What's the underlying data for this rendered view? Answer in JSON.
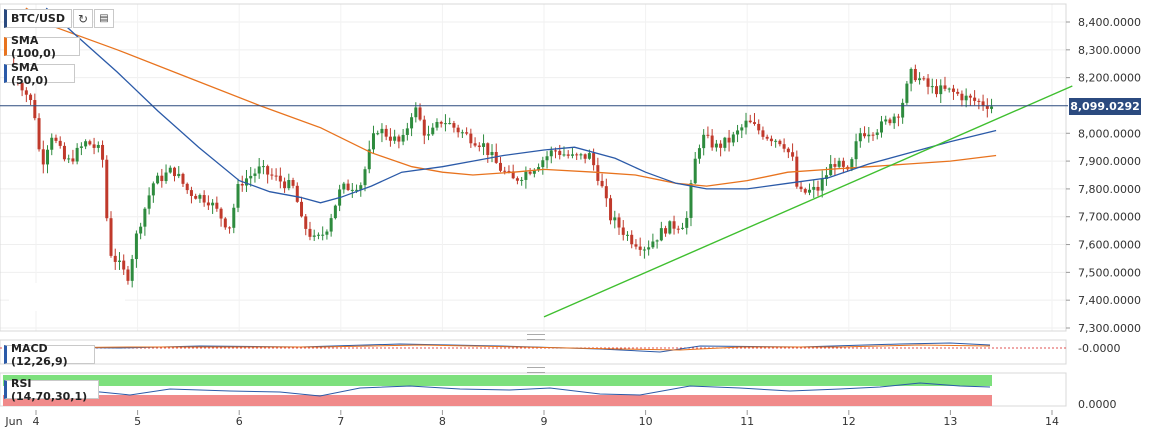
{
  "toolbar": {
    "symbol": "BTC/USD",
    "sma100_label": "SMA (100,0)",
    "sma50_label": "SMA (50,0)",
    "macd_label": "MACD (12,26,9)",
    "rsi_label": "RSI (14,70,30,1)",
    "refresh_icon": "refresh-icon",
    "candles_icon": "candles-icon"
  },
  "colors": {
    "up": "#2e8b3e",
    "down": "#c0392b",
    "sma100": "#e8731e",
    "sma50": "#2b5aa8",
    "trend": "#3fbf2f",
    "price_line": "#2b4a7f"
  },
  "current_price": "8,099.0292",
  "macd_axis_label": "-0.0000",
  "rsi_axis_label": "0.0000",
  "chart_data": {
    "type": "candlestick",
    "ylim": [
      7300,
      8450
    ],
    "yticks": [
      {
        "value": 8400,
        "label": "8,400.0000"
      },
      {
        "value": 8300,
        "label": "8,300.0000"
      },
      {
        "value": 8200,
        "label": "8,200.0000"
      },
      {
        "value": 8000,
        "label": "8,000.0000"
      },
      {
        "value": 7900,
        "label": "7,900.0000"
      },
      {
        "value": 7800,
        "label": "7,800.0000"
      },
      {
        "value": 7700,
        "label": "7,700.0000"
      },
      {
        "value": 7600,
        "label": "7,600.0000"
      },
      {
        "value": 7500,
        "label": "7,500.0000"
      },
      {
        "value": 7400,
        "label": "7,400.0000"
      },
      {
        "value": 7300,
        "label": "7,300.0000"
      }
    ],
    "xlim": [
      3.8,
      14.3
    ],
    "xticks": [
      {
        "value": 3.85,
        "label": "Jun"
      },
      {
        "value": 4,
        "label": "4"
      },
      {
        "value": 5,
        "label": "5"
      },
      {
        "value": 6,
        "label": "6"
      },
      {
        "value": 7,
        "label": "7"
      },
      {
        "value": 8,
        "label": "8"
      },
      {
        "value": 9,
        "label": "9"
      },
      {
        "value": 10,
        "label": "10"
      },
      {
        "value": 11,
        "label": "11"
      },
      {
        "value": 12,
        "label": "12"
      },
      {
        "value": 13,
        "label": "13"
      },
      {
        "value": 14,
        "label": "14"
      }
    ],
    "price_line": 8099.03,
    "trendline": [
      [
        9.0,
        7340
      ],
      [
        14.2,
        8170
      ]
    ],
    "anchors": [
      [
        3.75,
        8250
      ],
      [
        3.98,
        8090
      ],
      [
        4.05,
        7880
      ],
      [
        4.15,
        8000
      ],
      [
        4.3,
        7890
      ],
      [
        4.5,
        7970
      ],
      [
        4.65,
        7930
      ],
      [
        4.72,
        7580
      ],
      [
        4.9,
        7480
      ],
      [
        5.0,
        7650
      ],
      [
        5.15,
        7820
      ],
      [
        5.35,
        7870
      ],
      [
        5.5,
        7790
      ],
      [
        5.7,
        7760
      ],
      [
        5.9,
        7660
      ],
      [
        6.0,
        7820
      ],
      [
        6.2,
        7870
      ],
      [
        6.4,
        7830
      ],
      [
        6.55,
        7800
      ],
      [
        6.6,
        7690
      ],
      [
        6.75,
        7610
      ],
      [
        6.85,
        7650
      ],
      [
        7.0,
        7800
      ],
      [
        7.2,
        7820
      ],
      [
        7.35,
        8020
      ],
      [
        7.6,
        7960
      ],
      [
        7.72,
        8100
      ],
      [
        7.85,
        7980
      ],
      [
        8.0,
        8050
      ],
      [
        8.2,
        8000
      ],
      [
        8.4,
        7960
      ],
      [
        8.55,
        7880
      ],
      [
        8.7,
        7830
      ],
      [
        8.9,
        7880
      ],
      [
        9.1,
        7940
      ],
      [
        9.3,
        7910
      ],
      [
        9.45,
        7920
      ],
      [
        9.55,
        7830
      ],
      [
        9.65,
        7700
      ],
      [
        9.85,
        7620
      ],
      [
        10.0,
        7590
      ],
      [
        10.2,
        7660
      ],
      [
        10.4,
        7680
      ],
      [
        10.48,
        7890
      ],
      [
        10.55,
        7990
      ],
      [
        10.7,
        7950
      ],
      [
        10.85,
        7980
      ],
      [
        11.0,
        8040
      ],
      [
        11.2,
        7990
      ],
      [
        11.35,
        7970
      ],
      [
        11.45,
        7900
      ],
      [
        11.5,
        7780
      ],
      [
        11.7,
        7800
      ],
      [
        11.85,
        7900
      ],
      [
        12.0,
        7850
      ],
      [
        12.1,
        8000
      ],
      [
        12.3,
        8020
      ],
      [
        12.5,
        8080
      ],
      [
        12.62,
        8220
      ],
      [
        12.8,
        8160
      ],
      [
        13.0,
        8150
      ],
      [
        13.2,
        8120
      ],
      [
        13.4,
        8100
      ]
    ],
    "sma100": [
      [
        3.9,
        8450
      ],
      [
        4.2,
        8380
      ],
      [
        4.8,
        8300
      ],
      [
        5.5,
        8200
      ],
      [
        6.2,
        8100
      ],
      [
        6.8,
        8020
      ],
      [
        7.3,
        7930
      ],
      [
        7.7,
        7880
      ],
      [
        8.0,
        7860
      ],
      [
        8.3,
        7850
      ],
      [
        8.7,
        7860
      ],
      [
        9.0,
        7870
      ],
      [
        9.5,
        7860
      ],
      [
        9.9,
        7850
      ],
      [
        10.3,
        7820
      ],
      [
        10.6,
        7810
      ],
      [
        11.0,
        7830
      ],
      [
        11.4,
        7860
      ],
      [
        11.8,
        7870
      ],
      [
        12.2,
        7880
      ],
      [
        12.6,
        7890
      ],
      [
        13.0,
        7900
      ],
      [
        13.45,
        7920
      ]
    ],
    "sma50": [
      [
        4.1,
        8450
      ],
      [
        4.4,
        8350
      ],
      [
        4.8,
        8220
      ],
      [
        5.2,
        8080
      ],
      [
        5.6,
        7950
      ],
      [
        6.0,
        7830
      ],
      [
        6.3,
        7790
      ],
      [
        6.6,
        7770
      ],
      [
        6.8,
        7750
      ],
      [
        7.0,
        7770
      ],
      [
        7.3,
        7810
      ],
      [
        7.6,
        7860
      ],
      [
        8.0,
        7880
      ],
      [
        8.3,
        7900
      ],
      [
        8.6,
        7920
      ],
      [
        9.0,
        7940
      ],
      [
        9.3,
        7950
      ],
      [
        9.7,
        7910
      ],
      [
        10.0,
        7860
      ],
      [
        10.3,
        7820
      ],
      [
        10.6,
        7800
      ],
      [
        11.0,
        7800
      ],
      [
        11.4,
        7820
      ],
      [
        11.8,
        7840
      ],
      [
        12.2,
        7890
      ],
      [
        12.6,
        7930
      ],
      [
        13.0,
        7970
      ],
      [
        13.45,
        8010
      ]
    ]
  }
}
